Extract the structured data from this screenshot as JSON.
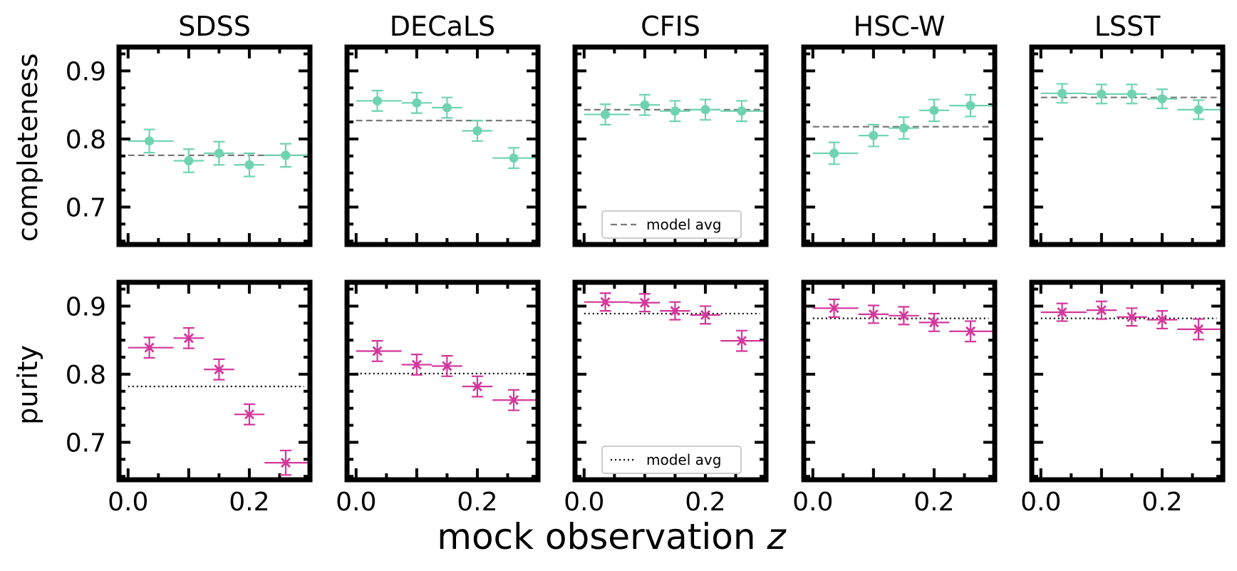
{
  "colors": {
    "completeness": "#6fd3b0",
    "purity": "#d4369b",
    "avg_line": "#7a7a7a"
  },
  "labels": {
    "xlabel": "mock observation",
    "xlabel_var": "z",
    "row_labels": [
      "completeness",
      "purity"
    ],
    "legend_label": "model avg"
  },
  "chart_data": {
    "type": "scatter",
    "xlim": [
      -0.015,
      0.3
    ],
    "x_ticks": [
      0.0,
      0.2
    ],
    "x_tick_labels": [
      "0.0",
      "0.2"
    ],
    "ylim": [
      0.645,
      0.935
    ],
    "y_ticks": [
      0.7,
      0.8,
      0.9
    ],
    "y_tick_labels": [
      "0.7",
      "0.8",
      "0.9"
    ],
    "x_bins": [
      [
        0.0,
        0.075
      ],
      [
        0.075,
        0.125
      ],
      [
        0.125,
        0.175
      ],
      [
        0.175,
        0.225
      ],
      [
        0.225,
        0.3
      ]
    ],
    "x_centers": [
      0.035,
      0.1,
      0.15,
      0.2,
      0.26
    ],
    "surveys": [
      "SDSS",
      "DECaLS",
      "CFIS",
      "HSC-W",
      "LSST"
    ],
    "completeness": {
      "marker": "circle",
      "avg_style": "dashed",
      "avg": [
        0.776,
        0.827,
        0.843,
        0.818,
        0.861
      ],
      "values": [
        [
          0.797,
          0.768,
          0.779,
          0.762,
          0.776
        ],
        [
          0.856,
          0.853,
          0.846,
          0.812,
          0.772
        ],
        [
          0.836,
          0.85,
          0.841,
          0.843,
          0.841
        ],
        [
          0.779,
          0.805,
          0.816,
          0.842,
          0.849
        ],
        [
          0.867,
          0.866,
          0.866,
          0.859,
          0.843
        ]
      ],
      "errors": [
        [
          0.017,
          0.017,
          0.017,
          0.017,
          0.017
        ],
        [
          0.015,
          0.015,
          0.015,
          0.015,
          0.015
        ],
        [
          0.015,
          0.015,
          0.015,
          0.015,
          0.015
        ],
        [
          0.016,
          0.016,
          0.016,
          0.016,
          0.016
        ],
        [
          0.014,
          0.014,
          0.014,
          0.014,
          0.014
        ]
      ],
      "legend_panel": 2
    },
    "purity": {
      "marker": "x",
      "avg_style": "dotted",
      "avg": [
        0.782,
        0.801,
        0.889,
        0.882,
        0.882
      ],
      "values": [
        [
          0.839,
          0.853,
          0.807,
          0.741,
          0.67
        ],
        [
          0.834,
          0.814,
          0.812,
          0.782,
          0.762
        ],
        [
          0.906,
          0.905,
          0.893,
          0.887,
          0.849
        ],
        [
          0.897,
          0.888,
          0.886,
          0.876,
          0.863
        ],
        [
          0.891,
          0.894,
          0.884,
          0.88,
          0.866
        ]
      ],
      "errors": [
        [
          0.015,
          0.015,
          0.015,
          0.015,
          0.018
        ],
        [
          0.015,
          0.015,
          0.015,
          0.015,
          0.015
        ],
        [
          0.013,
          0.013,
          0.013,
          0.013,
          0.015
        ],
        [
          0.013,
          0.013,
          0.013,
          0.013,
          0.015
        ],
        [
          0.013,
          0.013,
          0.013,
          0.013,
          0.015
        ]
      ],
      "legend_panel": 2
    }
  }
}
